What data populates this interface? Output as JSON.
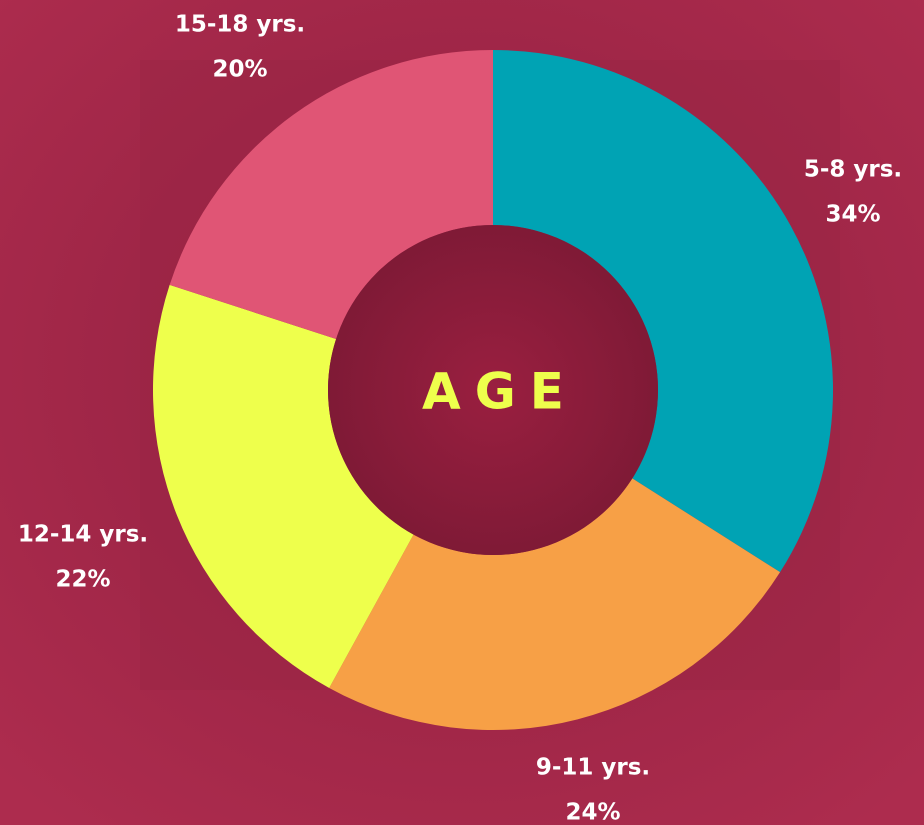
{
  "chart_data": {
    "type": "donut",
    "center_label": "AGE",
    "categories": [
      "5-8 yrs.",
      "9-11 yrs.",
      "12-14 yrs.",
      "15-18 yrs."
    ],
    "values": [
      34,
      24,
      22,
      20
    ],
    "value_labels": [
      "34%",
      "24%",
      "22%",
      "20%"
    ],
    "colors": [
      "#00a3b4",
      "#f7a046",
      "#eeff4c",
      "#e05575"
    ]
  }
}
